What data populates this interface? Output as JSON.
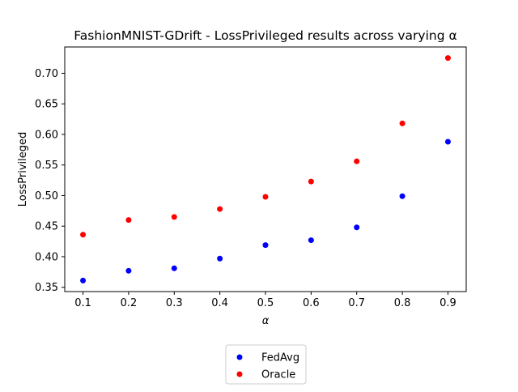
{
  "chart_data": {
    "type": "scatter",
    "title": "FashionMNIST-GDrift - LossPrivileged results across varying α",
    "xlabel": "α",
    "ylabel": "LossPrivileged",
    "x": [
      0.1,
      0.2,
      0.3,
      0.4,
      0.5,
      0.6,
      0.7,
      0.8,
      0.9
    ],
    "xlim": [
      0.06,
      0.94
    ],
    "ylim": [
      0.343,
      0.743
    ],
    "xticks": [
      "0.1",
      "0.2",
      "0.3",
      "0.4",
      "0.5",
      "0.6",
      "0.7",
      "0.8",
      "0.9"
    ],
    "yticks": [
      "0.35",
      "0.40",
      "0.45",
      "0.50",
      "0.55",
      "0.60",
      "0.65",
      "0.70"
    ],
    "grid": false,
    "legend_position": "bottom-center, below plot",
    "series": [
      {
        "name": "FedAvg",
        "color": "#0000ff",
        "values": [
          0.361,
          0.377,
          0.381,
          0.397,
          0.419,
          0.427,
          0.448,
          0.499,
          0.588
        ]
      },
      {
        "name": "Oracle",
        "color": "#ff0000",
        "values": [
          0.436,
          0.46,
          0.465,
          0.478,
          0.498,
          0.523,
          0.556,
          0.618,
          0.725
        ]
      }
    ]
  }
}
